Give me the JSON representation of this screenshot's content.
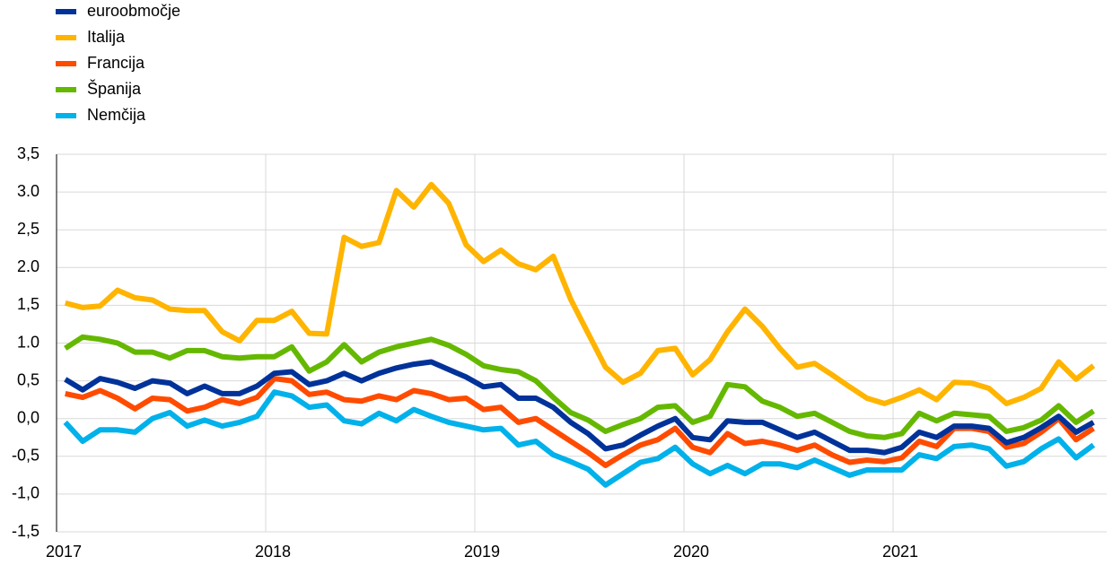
{
  "chart_data": {
    "type": "line",
    "categories": [
      "2017",
      null,
      null,
      null,
      null,
      null,
      null,
      null,
      null,
      null,
      null,
      null,
      "2018",
      null,
      null,
      null,
      null,
      null,
      null,
      null,
      null,
      null,
      null,
      null,
      "2019",
      null,
      null,
      null,
      null,
      null,
      null,
      null,
      null,
      null,
      null,
      null,
      "2020",
      null,
      null,
      null,
      null,
      null,
      null,
      null,
      null,
      null,
      null,
      null,
      "2021",
      null,
      null,
      null,
      null,
      null,
      null,
      null,
      null,
      null,
      null,
      null
    ],
    "series": [
      {
        "name": "euroobmočje",
        "color": "#003299",
        "values": [
          0.52,
          0.38,
          0.53,
          0.48,
          0.4,
          0.5,
          0.47,
          0.33,
          0.43,
          0.33,
          0.33,
          0.43,
          0.6,
          0.62,
          0.45,
          0.5,
          0.6,
          0.5,
          0.6,
          0.67,
          0.72,
          0.75,
          0.65,
          0.55,
          0.42,
          0.45,
          0.27,
          0.27,
          0.15,
          -0.05,
          -0.2,
          -0.4,
          -0.35,
          -0.22,
          -0.1,
          0.0,
          -0.25,
          -0.28,
          -0.03,
          -0.05,
          -0.05,
          -0.15,
          -0.25,
          -0.18,
          -0.3,
          -0.42,
          -0.42,
          -0.45,
          -0.38,
          -0.18,
          -0.25,
          -0.1,
          -0.1,
          -0.13,
          -0.32,
          -0.25,
          -0.12,
          0.03,
          -0.18,
          -0.05
        ]
      },
      {
        "name": "Italija",
        "color": "#ffb400",
        "values": [
          1.53,
          1.47,
          1.49,
          1.7,
          1.6,
          1.57,
          1.45,
          1.43,
          1.43,
          1.15,
          1.03,
          1.3,
          1.3,
          1.42,
          1.13,
          1.12,
          2.4,
          2.28,
          2.33,
          3.02,
          2.8,
          3.1,
          2.85,
          2.3,
          2.08,
          2.23,
          2.05,
          1.97,
          2.15,
          1.58,
          1.13,
          0.68,
          0.48,
          0.6,
          0.9,
          0.93,
          0.58,
          0.78,
          1.15,
          1.45,
          1.22,
          0.93,
          0.68,
          0.73,
          0.58,
          0.42,
          0.27,
          0.2,
          0.28,
          0.38,
          0.25,
          0.48,
          0.47,
          0.4,
          0.2,
          0.28,
          0.4,
          0.75,
          0.52,
          0.7
        ]
      },
      {
        "name": "Francija",
        "color": "#ff4b00",
        "values": [
          0.33,
          0.28,
          0.37,
          0.27,
          0.13,
          0.27,
          0.25,
          0.1,
          0.15,
          0.25,
          0.2,
          0.28,
          0.53,
          0.5,
          0.32,
          0.35,
          0.25,
          0.23,
          0.3,
          0.25,
          0.37,
          0.33,
          0.25,
          0.27,
          0.12,
          0.15,
          -0.05,
          0.0,
          -0.15,
          -0.3,
          -0.45,
          -0.62,
          -0.48,
          -0.35,
          -0.28,
          -0.13,
          -0.38,
          -0.45,
          -0.2,
          -0.33,
          -0.3,
          -0.35,
          -0.42,
          -0.35,
          -0.48,
          -0.58,
          -0.55,
          -0.57,
          -0.52,
          -0.3,
          -0.37,
          -0.13,
          -0.13,
          -0.17,
          -0.38,
          -0.33,
          -0.18,
          0.0,
          -0.28,
          -0.13
        ]
      },
      {
        "name": "Španija",
        "color": "#65b800",
        "values": [
          0.93,
          1.08,
          1.05,
          1.0,
          0.88,
          0.88,
          0.8,
          0.9,
          0.9,
          0.82,
          0.8,
          0.82,
          0.82,
          0.95,
          0.63,
          0.75,
          0.98,
          0.75,
          0.88,
          0.95,
          1.0,
          1.05,
          0.97,
          0.85,
          0.7,
          0.65,
          0.62,
          0.5,
          0.28,
          0.08,
          -0.02,
          -0.17,
          -0.08,
          0.0,
          0.15,
          0.17,
          -0.05,
          0.03,
          0.45,
          0.42,
          0.23,
          0.15,
          0.03,
          0.07,
          -0.05,
          -0.17,
          -0.23,
          -0.25,
          -0.2,
          0.07,
          -0.03,
          0.07,
          0.05,
          0.03,
          -0.17,
          -0.12,
          -0.02,
          0.17,
          -0.05,
          0.1
        ]
      },
      {
        "name": "Nemčija",
        "color": "#00b1ea",
        "values": [
          -0.05,
          -0.3,
          -0.15,
          -0.15,
          -0.18,
          0.0,
          0.08,
          -0.1,
          -0.02,
          -0.1,
          -0.05,
          0.03,
          0.35,
          0.3,
          0.15,
          0.18,
          -0.03,
          -0.07,
          0.07,
          -0.03,
          0.12,
          0.03,
          -0.05,
          -0.1,
          -0.15,
          -0.13,
          -0.35,
          -0.3,
          -0.48,
          -0.57,
          -0.67,
          -0.88,
          -0.73,
          -0.58,
          -0.53,
          -0.38,
          -0.6,
          -0.73,
          -0.62,
          -0.73,
          -0.6,
          -0.6,
          -0.65,
          -0.55,
          -0.65,
          -0.75,
          -0.68,
          -0.68,
          -0.68,
          -0.48,
          -0.53,
          -0.37,
          -0.35,
          -0.4,
          -0.63,
          -0.57,
          -0.4,
          -0.27,
          -0.52,
          -0.35
        ]
      }
    ],
    "ylim": [
      -1.5,
      3.5
    ],
    "yticks": [
      {
        "value": -1.5,
        "label": "-1,5"
      },
      {
        "value": -1,
        "label": "-1,0"
      },
      {
        "value": -0.5,
        "label": "-0,5"
      },
      {
        "value": 0,
        "label": "0,0"
      },
      {
        "value": 0.5,
        "label": "0,5"
      },
      {
        "value": 1,
        "label": "1.0"
      },
      {
        "value": 1.5,
        "label": "1,5"
      },
      {
        "value": 2,
        "label": "2.0"
      },
      {
        "value": 2.5,
        "label": "2,5"
      },
      {
        "value": 3,
        "label": "3.0"
      },
      {
        "value": 3.5,
        "label": "3,5"
      }
    ],
    "grid": true,
    "legend": "top-left"
  }
}
